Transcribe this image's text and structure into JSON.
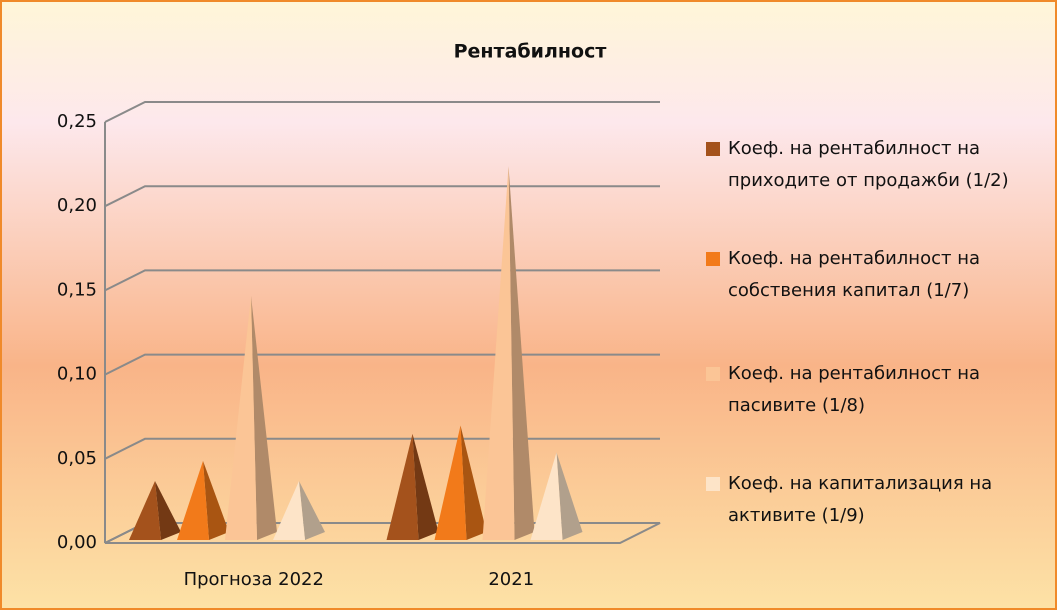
{
  "chart_data": {
    "type": "pyramid3d",
    "title": "Рентабилност",
    "categories": [
      "Прогноза 2022",
      "2021"
    ],
    "series": [
      {
        "name": "Коеф. на рентабилност на приходите от продажби (1/2)",
        "color": "#a4521c",
        "values": [
          0.035,
          0.063
        ]
      },
      {
        "name": "Коеф. на рентабилност на собствения капитал (1/7)",
        "color": "#f27a1a",
        "values": [
          0.047,
          0.068
        ]
      },
      {
        "name": "Коеф. на рентабилност на пасивите (1/8)",
        "color": "#fbc596",
        "values": [
          0.145,
          0.222
        ]
      },
      {
        "name": "Коеф. на капитализация на активите (1/9)",
        "color": "#fde4c8",
        "values": [
          0.035,
          0.052
        ]
      }
    ],
    "ylim": [
      0,
      0.25
    ],
    "yticks": [
      {
        "value": 0,
        "label": "0,00"
      },
      {
        "value": 0.05,
        "label": "0,05"
      },
      {
        "value": 0.1,
        "label": "0,10"
      },
      {
        "value": 0.15,
        "label": "0,15"
      },
      {
        "value": 0.2,
        "label": "0,20"
      },
      {
        "value": 0.25,
        "label": "0,25"
      }
    ],
    "grid": true,
    "legend": "right"
  }
}
